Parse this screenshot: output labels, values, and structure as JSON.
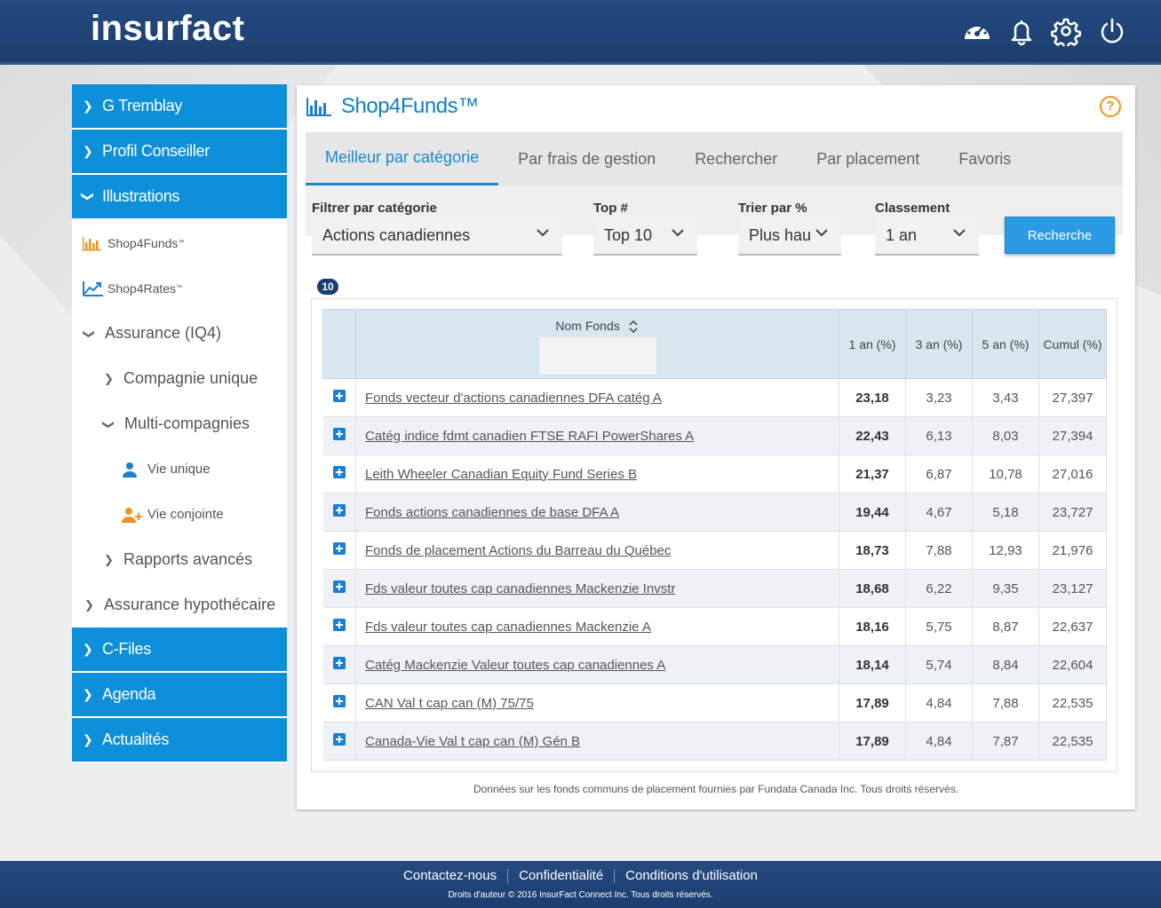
{
  "app": {
    "logo": "insurfact"
  },
  "header_icons": [
    "dashboard-icon",
    "bell-icon",
    "gear-icon",
    "power-icon"
  ],
  "sidebar": {
    "top_items": [
      {
        "label": "G Tremblay",
        "expanded": false
      },
      {
        "label": "Profil Conseiller",
        "expanded": false
      },
      {
        "label": "Illustrations",
        "expanded": true
      }
    ],
    "sub_items": {
      "shop4funds": "Shop4Funds",
      "shop4funds_tm": "™",
      "shop4rates": "Shop4Rates",
      "shop4rates_tm": "™",
      "assurance_iq4": "Assurance (IQ4)",
      "compagnie_unique": "Compagnie unique",
      "multi_compagnies": "Multi-compagnies",
      "vie_unique": "Vie unique",
      "vie_conjointe": "Vie conjointe",
      "rapports_avances": "Rapports avancés",
      "assurance_hypothecaire": "Assurance hypothécaire"
    },
    "bottom_items": [
      {
        "label": "C-Files"
      },
      {
        "label": "Agenda"
      },
      {
        "label": "Actualités"
      }
    ]
  },
  "panel": {
    "title": "Shop4Funds™",
    "help": "?",
    "tabs": [
      {
        "label": "Meilleur par catégorie",
        "active": true
      },
      {
        "label": "Par frais de gestion",
        "active": false
      },
      {
        "label": "Rechercher",
        "active": false
      },
      {
        "label": "Par placement",
        "active": false
      },
      {
        "label": "Favoris",
        "active": false
      }
    ],
    "filters": {
      "category_label": "Filtrer par catégorie",
      "category_value": "Actions canadiennes",
      "top_label": "Top #",
      "top_value": "Top 10",
      "sort_label": "Trier par %",
      "sort_value": "Plus hau",
      "rank_label": "Classement",
      "rank_value": "1 an",
      "search_button": "Recherche"
    },
    "result_count": "10",
    "table": {
      "headers": {
        "name": "Nom Fonds",
        "y1": "1 an (%)",
        "y3": "3 an (%)",
        "y5": "5 an (%)",
        "cumul": "Cumul (%)"
      },
      "rows": [
        {
          "name": "Fonds vecteur d'actions canadiennes DFA catég A",
          "y1": "23,18",
          "y3": "3,23",
          "y5": "3,43",
          "cumul": "27,397"
        },
        {
          "name": "Catég indice fdmt canadien FTSE RAFI PowerShares A",
          "y1": "22,43",
          "y3": "6,13",
          "y5": "8,03",
          "cumul": "27,394"
        },
        {
          "name": "Leith Wheeler Canadian Equity Fund Series B",
          "y1": "21,37",
          "y3": "6,87",
          "y5": "10,78",
          "cumul": "27,016"
        },
        {
          "name": "Fonds actions canadiennes de base DFA A",
          "y1": "19,44",
          "y3": "4,67",
          "y5": "5,18",
          "cumul": "23,727"
        },
        {
          "name": "Fonds de placement Actions du Barreau du Québec",
          "y1": "18,73",
          "y3": "7,88",
          "y5": "12,93",
          "cumul": "21,976"
        },
        {
          "name": "Fds valeur toutes cap canadiennes Mackenzie Invstr",
          "y1": "18,68",
          "y3": "6,22",
          "y5": "9,35",
          "cumul": "23,127"
        },
        {
          "name": "Fds valeur toutes cap canadiennes Mackenzie A",
          "y1": "18,16",
          "y3": "5,75",
          "y5": "8,87",
          "cumul": "22,637"
        },
        {
          "name": "Catég Mackenzie Valeur toutes cap canadiennes A",
          "y1": "18,14",
          "y3": "5,74",
          "y5": "8,84",
          "cumul": "22,604"
        },
        {
          "name": "CAN Val t cap can (M) 75/75",
          "y1": "17,89",
          "y3": "4,84",
          "y5": "7,88",
          "cumul": "22,535"
        },
        {
          "name": "Canada-Vie Val t cap can (M) Gén B",
          "y1": "17,89",
          "y3": "4,84",
          "y5": "7,87",
          "cumul": "22,535"
        }
      ]
    },
    "note": "Données sur les fonds communs de placement fournies par Fundata Canada Inc. Tous droits réservés."
  },
  "footer": {
    "links": [
      "Contactez-nous",
      "Confidentialité",
      "Conditions d'utilisation"
    ],
    "copyright": "Droits d'auteur © 2016 InsurFact Connect Inc. Tous droits réservés."
  },
  "colors": {
    "header": "#1d3e6e",
    "sidebar_blue": "#0e8fd9",
    "accent": "#1a8ad0",
    "help": "#f0931e"
  }
}
